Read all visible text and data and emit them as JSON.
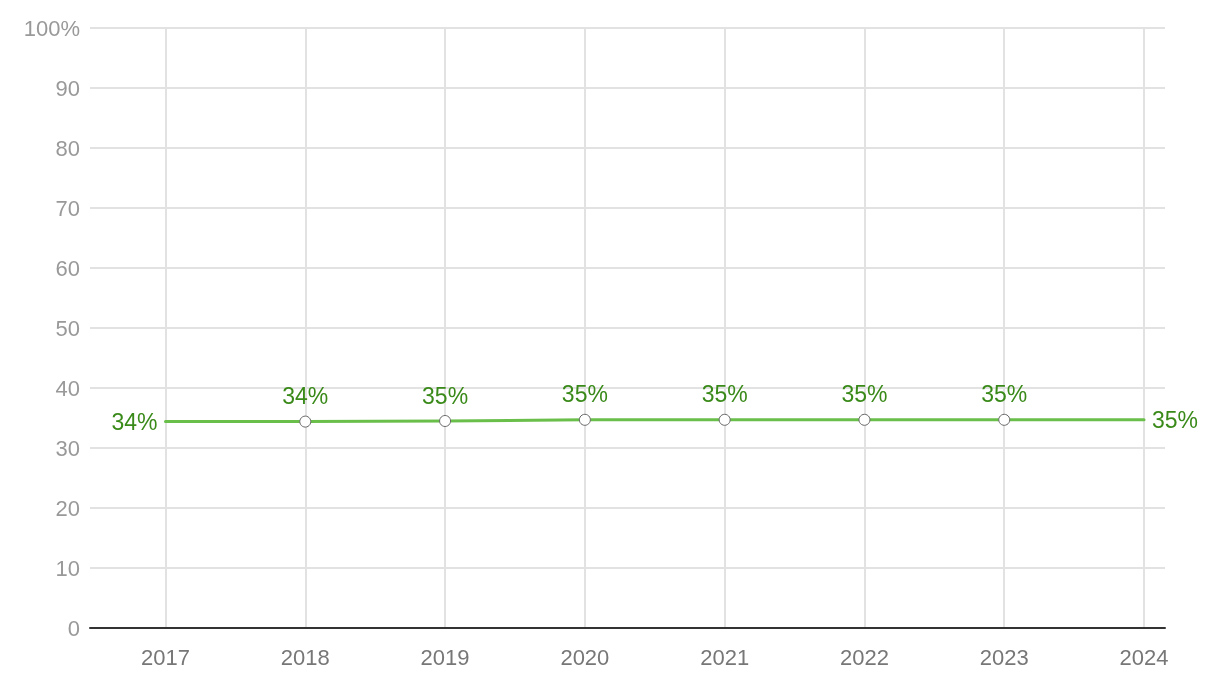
{
  "chart_data": {
    "type": "line",
    "x": [
      2017,
      2018,
      2019,
      2020,
      2021,
      2022,
      2023,
      2024
    ],
    "series": [
      {
        "color": "#6abf4b",
        "values": [
          34.4,
          34.4,
          34.5,
          34.7,
          34.7,
          34.7,
          34.7,
          34.7
        ],
        "value_labels": [
          "34%",
          "34%",
          "35%",
          "35%",
          "35%",
          "35%",
          "35%",
          "35%"
        ]
      }
    ],
    "xlim": [
      2016.46,
      2024.15
    ],
    "xticks": [
      2017,
      2018,
      2019,
      2020,
      2021,
      2022,
      2023,
      2024
    ],
    "ylim": [
      0,
      100
    ],
    "yticks": [
      0,
      10,
      20,
      30,
      40,
      50,
      60,
      70,
      80,
      90,
      {
        "value": 100,
        "label": "100%"
      }
    ],
    "grid": true,
    "marker": "circle",
    "line_style": "solid"
  }
}
